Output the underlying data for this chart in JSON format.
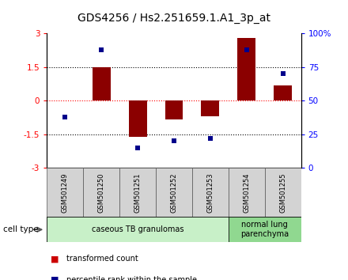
{
  "title": "GDS4256 / Hs2.251659.1.A1_3p_at",
  "samples": [
    "GSM501249",
    "GSM501250",
    "GSM501251",
    "GSM501252",
    "GSM501253",
    "GSM501254",
    "GSM501255"
  ],
  "transformed_count": [
    0.02,
    1.5,
    -1.62,
    -0.82,
    -0.7,
    2.8,
    0.7
  ],
  "percentile_rank": [
    38,
    88,
    15,
    20,
    22,
    88,
    70
  ],
  "ylim": [
    -3,
    3
  ],
  "yticks": [
    -3,
    -1.5,
    0,
    1.5,
    3
  ],
  "y2ticks": [
    0,
    25,
    50,
    75,
    100
  ],
  "dotted_lines_black": [
    -1.5,
    1.5
  ],
  "dotted_line_red": 0,
  "bar_color": "#8B0000",
  "dot_color": "#00008B",
  "cell_types": [
    {
      "label": "caseous TB granulomas",
      "start": 0,
      "end": 5,
      "color": "#c8f0c8"
    },
    {
      "label": "normal lung\nparenchyma",
      "start": 5,
      "end": 7,
      "color": "#90d890"
    }
  ],
  "cell_type_label": "cell type",
  "legend": [
    {
      "color": "#CC0000",
      "label": "transformed count"
    },
    {
      "color": "#00008B",
      "label": "percentile rank within the sample"
    }
  ],
  "bar_width": 0.5,
  "background_color": "#ffffff",
  "title_fontsize": 10,
  "tick_fontsize": 7.5,
  "sample_fontsize": 6,
  "ct_fontsize": 7
}
